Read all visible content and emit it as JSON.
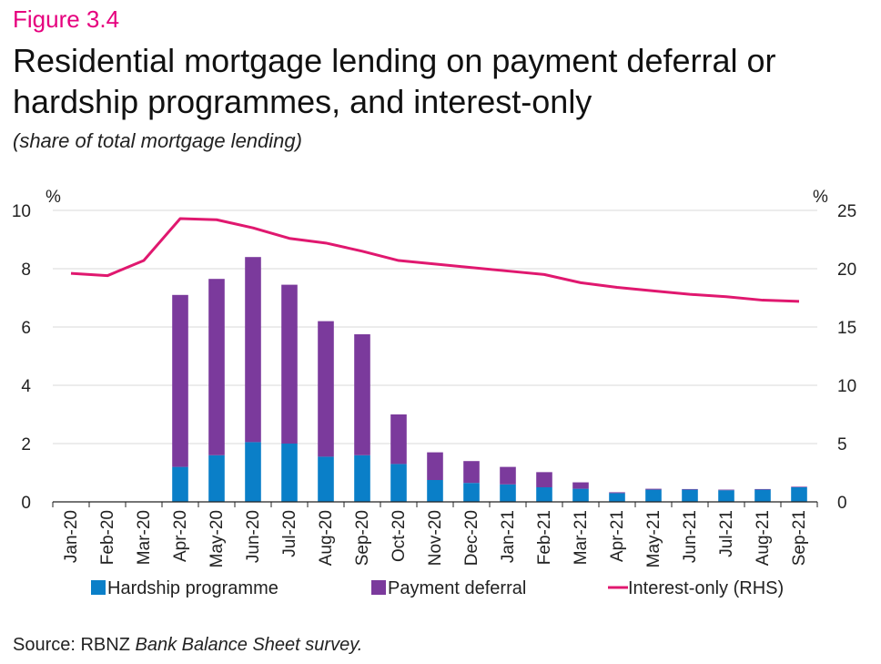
{
  "figure_label": "Figure 3.4",
  "title": "Residential mortgage lending on payment deferral or hardship programmes, and interest-only",
  "subtitle": "(share of total mortgage lending)",
  "source": {
    "prefix": "Source: RBNZ ",
    "italic": "Bank Balance Sheet survey."
  },
  "colors": {
    "hardship": "#0a7fc8",
    "deferral": "#7b3a9c",
    "interest_only": "#e0186f",
    "grid": "#d9d9d9",
    "accent": "#e6007e"
  },
  "chart_data": {
    "type": "bar",
    "stacked": true,
    "categories": [
      "Jan-20",
      "Feb-20",
      "Mar-20",
      "Apr-20",
      "May-20",
      "Jun-20",
      "Jul-20",
      "Aug-20",
      "Sep-20",
      "Oct-20",
      "Nov-20",
      "Dec-20",
      "Jan-21",
      "Feb-21",
      "Mar-21",
      "Apr-21",
      "May-21",
      "Jun-21",
      "Jul-21",
      "Aug-21",
      "Sep-21"
    ],
    "y_left": {
      "unit": "%",
      "ylim": [
        0,
        10
      ],
      "ticks": [
        0,
        2,
        4,
        6,
        8,
        10
      ]
    },
    "y_right": {
      "unit": "%",
      "ylim": [
        0,
        25
      ],
      "ticks": [
        0,
        5,
        10,
        15,
        20,
        25
      ]
    },
    "grid": true,
    "legend_position": "bottom",
    "series": [
      {
        "name": "Hardship programme",
        "type": "bar",
        "axis": "left",
        "values": [
          0,
          0,
          0,
          1.2,
          1.6,
          2.05,
          2.0,
          1.55,
          1.6,
          1.3,
          0.75,
          0.65,
          0.6,
          0.5,
          0.45,
          0.3,
          0.42,
          0.42,
          0.4,
          0.42,
          0.5
        ]
      },
      {
        "name": "Payment deferral",
        "type": "bar",
        "axis": "left",
        "values": [
          0,
          0,
          0,
          5.9,
          6.05,
          6.35,
          5.45,
          4.65,
          4.15,
          1.7,
          0.95,
          0.75,
          0.6,
          0.52,
          0.22,
          0.03,
          0.03,
          0.02,
          0.02,
          0.02,
          0.02
        ]
      },
      {
        "name": "Interest-only (RHS)",
        "type": "line",
        "axis": "right",
        "values": [
          19.6,
          19.4,
          20.7,
          24.3,
          24.2,
          23.5,
          22.6,
          22.2,
          21.5,
          20.7,
          20.4,
          20.1,
          19.8,
          19.5,
          18.8,
          18.4,
          18.1,
          17.8,
          17.6,
          17.3,
          17.2
        ]
      }
    ]
  }
}
